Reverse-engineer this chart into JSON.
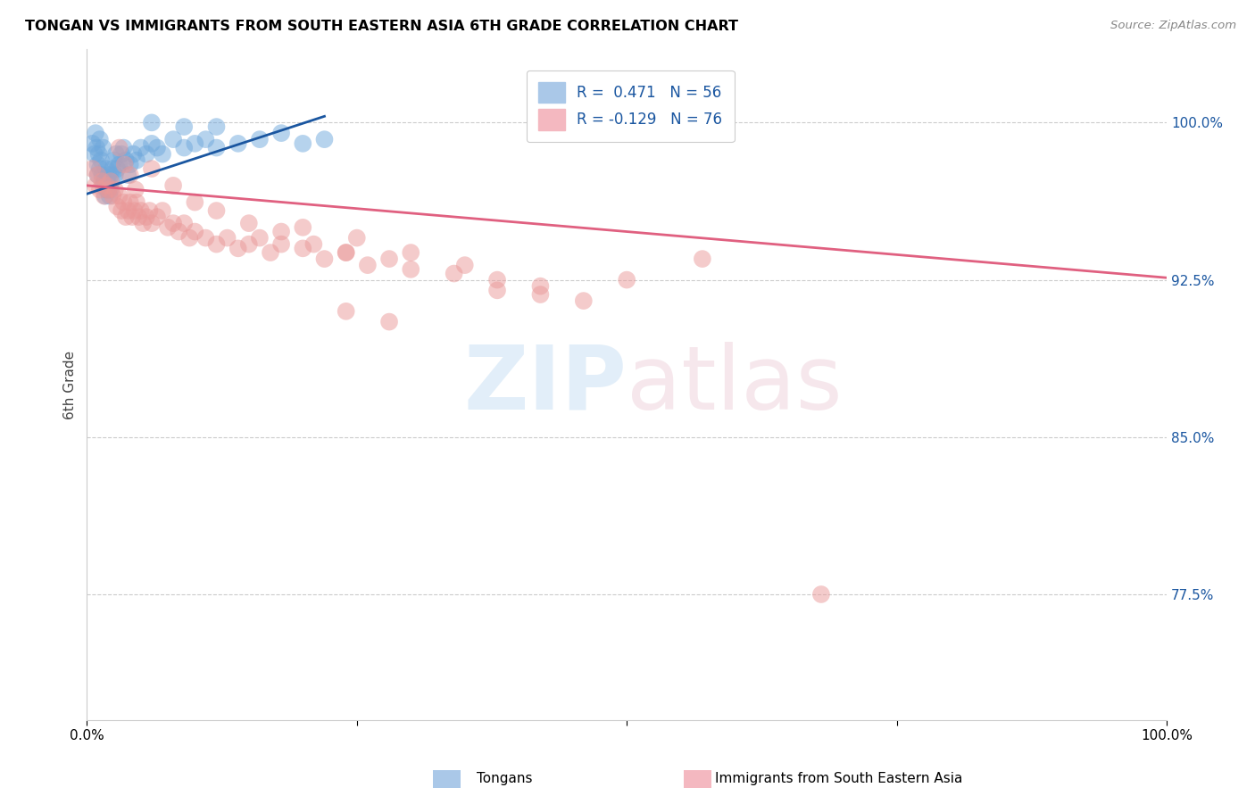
{
  "title": "TONGAN VS IMMIGRANTS FROM SOUTH EASTERN ASIA 6TH GRADE CORRELATION CHART",
  "source": "Source: ZipAtlas.com",
  "ylabel": "6th Grade",
  "ytick_labels": [
    "77.5%",
    "85.0%",
    "92.5%",
    "100.0%"
  ],
  "ytick_values": [
    0.775,
    0.85,
    0.925,
    1.0
  ],
  "xmin": 0.0,
  "xmax": 1.0,
  "ymin": 0.715,
  "ymax": 1.035,
  "legend_blue_label": "R =  0.471   N = 56",
  "legend_pink_label": "R = -0.129   N = 76",
  "blue_color": "#6fa8dc",
  "pink_color": "#ea9999",
  "blue_line_color": "#1a56a0",
  "pink_line_color": "#e06080",
  "footer_blue": "Tongans",
  "footer_pink": "Immigrants from South Eastern Asia",
  "blue_x": [
    0.005,
    0.007,
    0.008,
    0.009,
    0.01,
    0.01,
    0.011,
    0.012,
    0.012,
    0.013,
    0.014,
    0.015,
    0.015,
    0.016,
    0.017,
    0.018,
    0.018,
    0.019,
    0.02,
    0.02,
    0.021,
    0.022,
    0.022,
    0.023,
    0.024,
    0.025,
    0.026,
    0.027,
    0.028,
    0.03,
    0.032,
    0.034,
    0.036,
    0.038,
    0.04,
    0.043,
    0.046,
    0.05,
    0.055,
    0.06,
    0.065,
    0.07,
    0.08,
    0.09,
    0.1,
    0.11,
    0.12,
    0.14,
    0.16,
    0.18,
    0.2,
    0.22,
    0.12,
    0.09,
    0.06,
    0.53
  ],
  "blue_y": [
    0.99,
    0.985,
    0.995,
    0.988,
    0.98,
    0.975,
    0.985,
    0.992,
    0.978,
    0.982,
    0.975,
    0.988,
    0.97,
    0.972,
    0.965,
    0.968,
    0.978,
    0.972,
    0.975,
    0.968,
    0.965,
    0.975,
    0.968,
    0.972,
    0.978,
    0.982,
    0.975,
    0.985,
    0.978,
    0.98,
    0.985,
    0.988,
    0.982,
    0.975,
    0.98,
    0.985,
    0.982,
    0.988,
    0.985,
    0.99,
    0.988,
    0.985,
    0.992,
    0.988,
    0.99,
    0.992,
    0.988,
    0.99,
    0.992,
    0.995,
    0.99,
    0.992,
    0.998,
    0.998,
    1.0,
    1.0
  ],
  "pink_x": [
    0.005,
    0.008,
    0.01,
    0.012,
    0.014,
    0.016,
    0.018,
    0.02,
    0.022,
    0.024,
    0.026,
    0.028,
    0.03,
    0.032,
    0.034,
    0.036,
    0.038,
    0.04,
    0.042,
    0.044,
    0.046,
    0.048,
    0.05,
    0.052,
    0.055,
    0.058,
    0.06,
    0.065,
    0.07,
    0.075,
    0.08,
    0.085,
    0.09,
    0.095,
    0.1,
    0.11,
    0.12,
    0.13,
    0.14,
    0.15,
    0.16,
    0.17,
    0.18,
    0.2,
    0.22,
    0.24,
    0.26,
    0.28,
    0.3,
    0.34,
    0.38,
    0.42,
    0.2,
    0.25,
    0.3,
    0.35,
    0.06,
    0.08,
    0.1,
    0.12,
    0.15,
    0.18,
    0.21,
    0.24,
    0.03,
    0.035,
    0.04,
    0.045,
    0.38,
    0.42,
    0.46,
    0.5,
    0.24,
    0.28,
    0.57,
    0.68
  ],
  "pink_y": [
    0.978,
    0.97,
    0.975,
    0.968,
    0.972,
    0.965,
    0.97,
    0.968,
    0.972,
    0.965,
    0.968,
    0.96,
    0.965,
    0.958,
    0.962,
    0.955,
    0.958,
    0.962,
    0.955,
    0.958,
    0.962,
    0.955,
    0.958,
    0.952,
    0.955,
    0.958,
    0.952,
    0.955,
    0.958,
    0.95,
    0.952,
    0.948,
    0.952,
    0.945,
    0.948,
    0.945,
    0.942,
    0.945,
    0.94,
    0.942,
    0.945,
    0.938,
    0.942,
    0.94,
    0.935,
    0.938,
    0.932,
    0.935,
    0.93,
    0.928,
    0.925,
    0.922,
    0.95,
    0.945,
    0.938,
    0.932,
    0.978,
    0.97,
    0.962,
    0.958,
    0.952,
    0.948,
    0.942,
    0.938,
    0.988,
    0.98,
    0.975,
    0.968,
    0.92,
    0.918,
    0.915,
    0.925,
    0.91,
    0.905,
    0.935,
    0.775
  ]
}
